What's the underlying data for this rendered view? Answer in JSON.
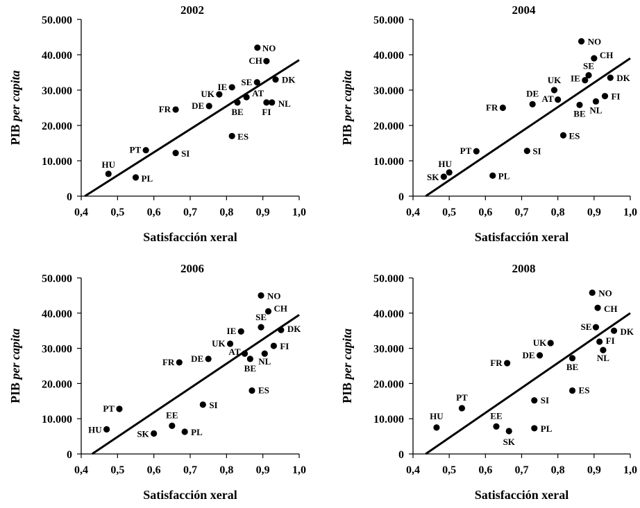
{
  "chart_data": [
    {
      "type": "scatter",
      "title": "2002",
      "xlabel": "Satisfacción xeral",
      "ylabel_main": "PIB ",
      "ylabel_italic": "per capita",
      "xlim": [
        0.4,
        1.0
      ],
      "ylim": [
        0,
        50000
      ],
      "x_ticks": [
        "0,4",
        "0,5",
        "0,6",
        "0,7",
        "0,8",
        "0,9",
        "1,0"
      ],
      "y_ticks": [
        "0",
        "10.000",
        "20.000",
        "30.000",
        "40.000",
        "50.000"
      ],
      "grid": false,
      "trendline": {
        "x": [
          0.41,
          1.0
        ],
        "y": [
          0,
          38500
        ]
      },
      "points": [
        {
          "label": "NO",
          "x": 0.885,
          "y": 42000
        },
        {
          "label": "CH",
          "x": 0.91,
          "y": 38200
        },
        {
          "label": "DK",
          "x": 0.935,
          "y": 33000
        },
        {
          "label": "SE",
          "x": 0.884,
          "y": 32200
        },
        {
          "label": "IE",
          "x": 0.815,
          "y": 30800
        },
        {
          "label": "AT",
          "x": 0.855,
          "y": 28000
        },
        {
          "label": "UK",
          "x": 0.78,
          "y": 28800
        },
        {
          "label": "NL",
          "x": 0.925,
          "y": 26500
        },
        {
          "label": "FI",
          "x": 0.91,
          "y": 26500
        },
        {
          "label": "BE",
          "x": 0.83,
          "y": 26500
        },
        {
          "label": "DE",
          "x": 0.752,
          "y": 25500
        },
        {
          "label": "FR",
          "x": 0.66,
          "y": 24500
        },
        {
          "label": "ES",
          "x": 0.815,
          "y": 17000
        },
        {
          "label": "PT",
          "x": 0.578,
          "y": 13000
        },
        {
          "label": "SI",
          "x": 0.66,
          "y": 12200
        },
        {
          "label": "HU",
          "x": 0.475,
          "y": 6300
        },
        {
          "label": "PL",
          "x": 0.55,
          "y": 5300
        }
      ]
    },
    {
      "type": "scatter",
      "title": "2004",
      "xlabel": "Satisfacción xeral",
      "ylabel_main": "PIB ",
      "ylabel_italic": "per capita",
      "xlim": [
        0.4,
        1.0
      ],
      "ylim": [
        0,
        50000
      ],
      "x_ticks": [
        "0,4",
        "0,5",
        "0,6",
        "0,7",
        "0,8",
        "0,9",
        "1,0"
      ],
      "y_ticks": [
        "0",
        "10.000",
        "20.000",
        "30.000",
        "40.000",
        "50.000"
      ],
      "grid": false,
      "trendline": {
        "x": [
          0.435,
          1.0
        ],
        "y": [
          0,
          39000
        ]
      },
      "points": [
        {
          "label": "NO",
          "x": 0.865,
          "y": 43800
        },
        {
          "label": "CH",
          "x": 0.9,
          "y": 39000
        },
        {
          "label": "SE",
          "x": 0.885,
          "y": 34200
        },
        {
          "label": "DK",
          "x": 0.945,
          "y": 33500
        },
        {
          "label": "IE",
          "x": 0.875,
          "y": 32800
        },
        {
          "label": "UK",
          "x": 0.79,
          "y": 30000
        },
        {
          "label": "FI",
          "x": 0.93,
          "y": 28300
        },
        {
          "label": "AT",
          "x": 0.8,
          "y": 27300
        },
        {
          "label": "NL",
          "x": 0.905,
          "y": 26800
        },
        {
          "label": "DE",
          "x": 0.73,
          "y": 26000
        },
        {
          "label": "BE",
          "x": 0.86,
          "y": 25800
        },
        {
          "label": "FR",
          "x": 0.648,
          "y": 25000
        },
        {
          "label": "ES",
          "x": 0.815,
          "y": 17200
        },
        {
          "label": "SI",
          "x": 0.715,
          "y": 12800
        },
        {
          "label": "PT",
          "x": 0.575,
          "y": 12700
        },
        {
          "label": "HU",
          "x": 0.5,
          "y": 6700
        },
        {
          "label": "PL",
          "x": 0.62,
          "y": 5800
        },
        {
          "label": "SK",
          "x": 0.485,
          "y": 5500
        }
      ]
    },
    {
      "type": "scatter",
      "title": "2006",
      "xlabel": "Satisfacción xeral",
      "ylabel_main": "PIB ",
      "ylabel_italic": "per capita",
      "xlim": [
        0.4,
        1.0
      ],
      "ylim": [
        0,
        50000
      ],
      "x_ticks": [
        "0,4",
        "0,5",
        "0,6",
        "0,7",
        "0,8",
        "0,9",
        "1,0"
      ],
      "y_ticks": [
        "0",
        "10.000",
        "20.000",
        "30.000",
        "40.000",
        "50.000"
      ],
      "grid": false,
      "trendline": {
        "x": [
          0.43,
          1.0
        ],
        "y": [
          0,
          39500
        ]
      },
      "points": [
        {
          "label": "NO",
          "x": 0.895,
          "y": 45000
        },
        {
          "label": "CH",
          "x": 0.915,
          "y": 40500
        },
        {
          "label": "SE",
          "x": 0.895,
          "y": 36000
        },
        {
          "label": "DK",
          "x": 0.95,
          "y": 35200
        },
        {
          "label": "IE",
          "x": 0.84,
          "y": 34800
        },
        {
          "label": "UK",
          "x": 0.81,
          "y": 31300
        },
        {
          "label": "FI",
          "x": 0.93,
          "y": 30700
        },
        {
          "label": "AT",
          "x": 0.85,
          "y": 28500
        },
        {
          "label": "NL",
          "x": 0.905,
          "y": 28500
        },
        {
          "label": "BE",
          "x": 0.865,
          "y": 27000
        },
        {
          "label": "DE",
          "x": 0.75,
          "y": 27000
        },
        {
          "label": "FR",
          "x": 0.67,
          "y": 26000
        },
        {
          "label": "ES",
          "x": 0.87,
          "y": 18000
        },
        {
          "label": "SI",
          "x": 0.735,
          "y": 14000
        },
        {
          "label": "PT",
          "x": 0.505,
          "y": 12800
        },
        {
          "label": "EE",
          "x": 0.65,
          "y": 8000
        },
        {
          "label": "HU",
          "x": 0.47,
          "y": 7000
        },
        {
          "label": "PL",
          "x": 0.685,
          "y": 6300
        },
        {
          "label": "SK",
          "x": 0.6,
          "y": 5800
        }
      ]
    },
    {
      "type": "scatter",
      "title": "2008",
      "xlabel": "Satisfacción xeral",
      "ylabel_main": "PIB ",
      "ylabel_italic": "per capita",
      "xlim": [
        0.4,
        1.0
      ],
      "ylim": [
        0,
        50000
      ],
      "x_ticks": [
        "0,4",
        "0,5",
        "0,6",
        "0,7",
        "0,8",
        "0,9",
        "1,0"
      ],
      "y_ticks": [
        "0",
        "10.000",
        "20.000",
        "30.000",
        "40.000",
        "50.000"
      ],
      "grid": false,
      "trendline": {
        "x": [
          0.435,
          1.0
        ],
        "y": [
          0,
          40000
        ]
      },
      "points": [
        {
          "label": "NO",
          "x": 0.895,
          "y": 45800
        },
        {
          "label": "CH",
          "x": 0.91,
          "y": 41500
        },
        {
          "label": "SE",
          "x": 0.905,
          "y": 36000
        },
        {
          "label": "DK",
          "x": 0.955,
          "y": 35000
        },
        {
          "label": "FI",
          "x": 0.915,
          "y": 31900
        },
        {
          "label": "UK",
          "x": 0.78,
          "y": 31500
        },
        {
          "label": "NL",
          "x": 0.925,
          "y": 29500
        },
        {
          "label": "DE",
          "x": 0.75,
          "y": 28000
        },
        {
          "label": "BE",
          "x": 0.84,
          "y": 27200
        },
        {
          "label": "FR",
          "x": 0.66,
          "y": 25800
        },
        {
          "label": "ES",
          "x": 0.84,
          "y": 18000
        },
        {
          "label": "SI",
          "x": 0.735,
          "y": 15200
        },
        {
          "label": "PT",
          "x": 0.535,
          "y": 13000
        },
        {
          "label": "EE",
          "x": 0.63,
          "y": 7800
        },
        {
          "label": "HU",
          "x": 0.465,
          "y": 7500
        },
        {
          "label": "PL",
          "x": 0.735,
          "y": 7300
        },
        {
          "label": "SK",
          "x": 0.665,
          "y": 6500
        }
      ]
    }
  ]
}
